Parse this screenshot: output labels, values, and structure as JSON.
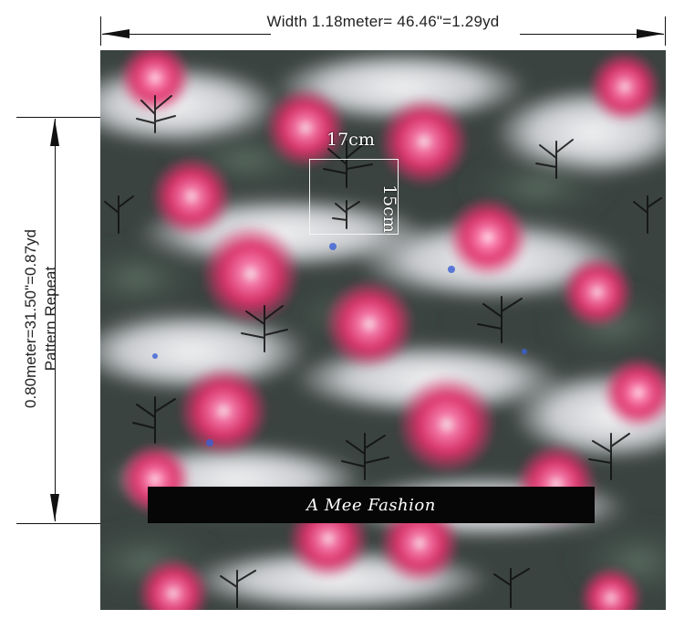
{
  "dimensions": {
    "width_label": "Width 1.18meter= 46.46\"=1.29yd",
    "height_label": "0.80meter=31.50\"=0.87yd",
    "pattern_repeat_label": "Pattern Repeat"
  },
  "tile": {
    "width_label": "17cm",
    "height_label": "15cm"
  },
  "brand": {
    "text": "A Mee Fashion"
  },
  "colors": {
    "fabric_dark_green": "#3e4744",
    "fabric_pink": "#e0306a",
    "fabric_white": "#e8e8ea",
    "brand_bar": "#060606",
    "arrows": "#111111"
  }
}
